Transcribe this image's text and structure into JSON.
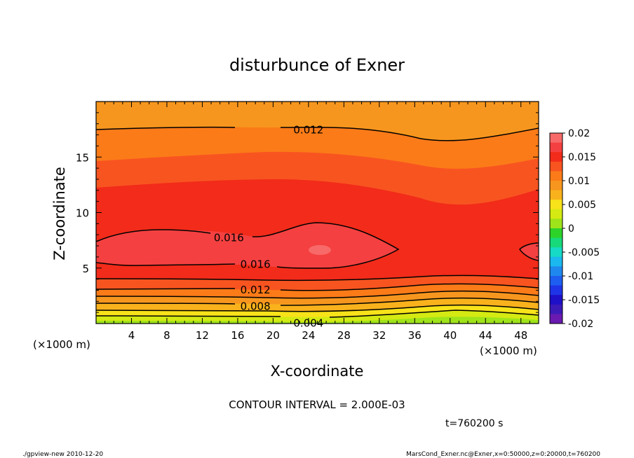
{
  "chart_data": {
    "type": "heatmap",
    "title": "disturbunce of Exner",
    "xlabel": "X-coordinate",
    "ylabel": "Z-coordinate",
    "x_unit": "(×1000 m)",
    "y_unit": "(×1000 m)",
    "xlim": [
      0,
      50
    ],
    "ylim": [
      0,
      20
    ],
    "x_ticks": [
      "4",
      "8",
      "12",
      "16",
      "20",
      "24",
      "28",
      "32",
      "36",
      "40",
      "44",
      "48"
    ],
    "y_ticks": [
      "5",
      "10",
      "15"
    ],
    "colorbar": {
      "labels": [
        "0.02",
        "0.015",
        "0.01",
        "0.005",
        "0",
        "-0.005",
        "-0.01",
        "-0.015",
        "-0.02"
      ],
      "range": [
        -0.02,
        0.02
      ],
      "step": 0.002
    },
    "contour_labels": [
      {
        "text": "0.012",
        "x": 24,
        "z": 17.5
      },
      {
        "text": "0.016",
        "x": 15,
        "z": 7.8
      },
      {
        "text": "0.016",
        "x": 18,
        "z": 5.4
      },
      {
        "text": "0.012",
        "x": 18,
        "z": 3.1
      },
      {
        "text": "0.008",
        "x": 18,
        "z": 1.6
      },
      {
        "text": "0.004",
        "x": 24,
        "z": 0.1
      }
    ],
    "contour_interval_text": "CONTOUR INTERVAL = 2.000E-03",
    "time_text": "t=760200 s",
    "footer_left": "./gpview-new  2010-12-20",
    "footer_right": "MarsCond_Exner.nc@Exner,x=0:50000,z=0:20000,t=760200"
  }
}
